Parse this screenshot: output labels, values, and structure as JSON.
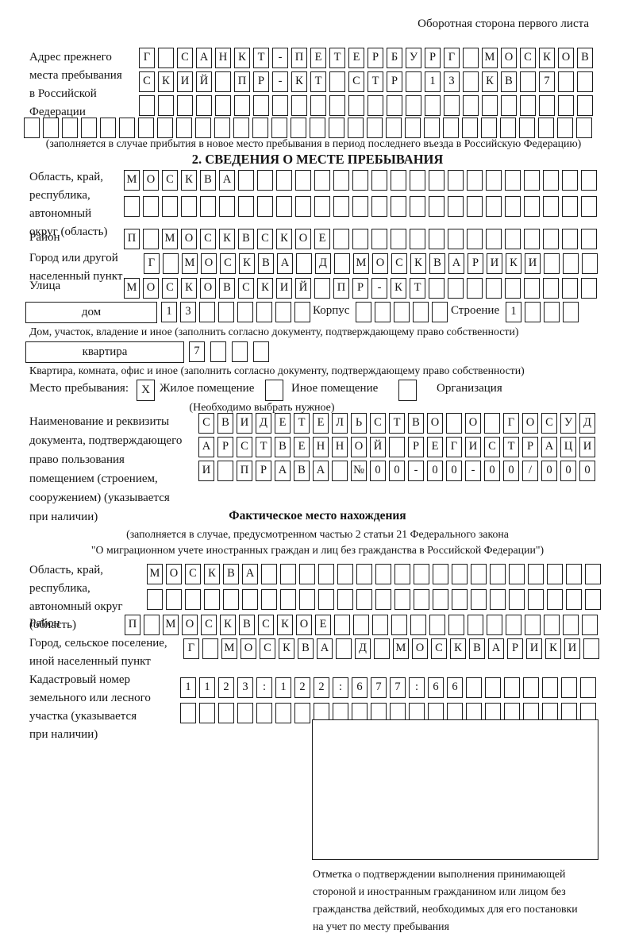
{
  "header_note": "Оборотная сторона первого листа",
  "prev_address": {
    "label_lines": [
      "Адрес прежнего",
      "места пребывания",
      "в Российской",
      "Федерации"
    ],
    "r1": [
      "Г",
      "",
      "С",
      "А",
      "Н",
      "К",
      "Т",
      "-",
      "П",
      "Е",
      "Т",
      "Е",
      "Р",
      "Б",
      "У",
      "Р",
      "Г",
      "",
      "М",
      "О",
      "С",
      "К",
      "О",
      "В"
    ],
    "r2": [
      "С",
      "К",
      "И",
      "Й",
      "",
      "П",
      "Р",
      "-",
      "К",
      "Т",
      "",
      "С",
      "Т",
      "Р",
      "",
      "1",
      "3",
      "",
      "К",
      "В",
      "",
      "7",
      "",
      ""
    ],
    "r3": [
      "",
      "",
      "",
      "",
      "",
      "",
      "",
      "",
      "",
      "",
      "",
      "",
      "",
      "",
      "",
      "",
      "",
      "",
      "",
      "",
      "",
      "",
      "",
      ""
    ],
    "r4": [
      "",
      "",
      "",
      "",
      "",
      "",
      "",
      "",
      "",
      "",
      "",
      "",
      "",
      "",
      "",
      "",
      "",
      "",
      "",
      "",
      "",
      "",
      "",
      "",
      "",
      "",
      "",
      "",
      "",
      ""
    ],
    "caption": "(заполняется в случае прибытия в новое место пребывания в период последнего въезда в Российскую Федерацию)"
  },
  "section2": {
    "title": "2. СВЕДЕНИЯ О МЕСТЕ ПРЕБЫВАНИЯ",
    "region": {
      "label_lines": [
        "Область, край,",
        "республика,",
        "автономный",
        "округ (область)"
      ],
      "r1": [
        "М",
        "О",
        "С",
        "К",
        "В",
        "А",
        "",
        "",
        "",
        "",
        "",
        "",
        "",
        "",
        "",
        "",
        "",
        "",
        "",
        "",
        "",
        "",
        "",
        "",
        ""
      ],
      "r2": [
        "",
        "",
        "",
        "",
        "",
        "",
        "",
        "",
        "",
        "",
        "",
        "",
        "",
        "",
        "",
        "",
        "",
        "",
        "",
        "",
        "",
        "",
        "",
        "",
        ""
      ]
    },
    "district": {
      "label": "Район",
      "r1": [
        "П",
        "",
        "М",
        "О",
        "С",
        "К",
        "В",
        "С",
        "К",
        "О",
        "Е",
        "",
        "",
        "",
        "",
        "",
        "",
        "",
        "",
        "",
        "",
        "",
        "",
        "",
        ""
      ]
    },
    "city": {
      "label_lines": [
        "Город или другой",
        "населенный пункт"
      ],
      "r1": [
        "Г",
        "",
        "М",
        "О",
        "С",
        "К",
        "В",
        "А",
        "",
        "Д",
        "",
        "М",
        "О",
        "С",
        "К",
        "В",
        "А",
        "Р",
        "И",
        "К",
        "И",
        "",
        "",
        ""
      ]
    },
    "street": {
      "label": "Улица",
      "r1": [
        "М",
        "О",
        "С",
        "К",
        "О",
        "В",
        "С",
        "К",
        "И",
        "Й",
        "",
        "П",
        "Р",
        "-",
        "К",
        "Т",
        "",
        "",
        "",
        "",
        "",
        "",
        "",
        "",
        ""
      ]
    },
    "house": {
      "label": "дом",
      "cells": [
        "1",
        "3",
        "",
        "",
        "",
        "",
        "",
        ""
      ],
      "korpus_label": "Корпус",
      "korpus_cells": [
        "",
        "",
        "",
        "",
        ""
      ],
      "stroenie_label": "Строение",
      "stroenie_cells": [
        "1",
        "",
        "",
        ""
      ]
    },
    "house_caption": "Дом, участок, владение и иное (заполнить согласно документу, подтверждающему право собственности)",
    "apartment": {
      "label": "квартира",
      "cells": [
        "7",
        "",
        "",
        ""
      ]
    },
    "apartment_caption": "Квартира, комната, офис и иное (заполнить согласно документу, подтверждающему право собственности)",
    "stay_type": {
      "label": "Место пребывания:",
      "options": [
        {
          "mark": "X",
          "label": "Жилое помещение"
        },
        {
          "mark": "",
          "label": "Иное помещение"
        },
        {
          "mark": "",
          "label": "Организация"
        }
      ],
      "note": "(Необходимо выбрать нужное)"
    },
    "document": {
      "label_lines": [
        "Наименование и реквизиты",
        "документа, подтверждающего",
        "право пользования",
        "помещением (строением,",
        "сооружением) (указывается",
        "при наличии)"
      ],
      "r1": [
        "С",
        "В",
        "И",
        "Д",
        "Е",
        "Т",
        "Е",
        "Л",
        "Ь",
        "С",
        "Т",
        "В",
        "О",
        "",
        "О",
        "",
        "Г",
        "О",
        "С",
        "У",
        "Д"
      ],
      "r2": [
        "А",
        "Р",
        "С",
        "Т",
        "В",
        "Е",
        "Н",
        "Н",
        "О",
        "Й",
        "",
        "Р",
        "Е",
        "Г",
        "И",
        "С",
        "Т",
        "Р",
        "А",
        "Ц",
        "И"
      ],
      "r3": [
        "И",
        "",
        "П",
        "Р",
        "А",
        "В",
        "А",
        "",
        "№",
        "0",
        "0",
        "-",
        "0",
        "0",
        "-",
        "0",
        "0",
        "/",
        "0",
        "0",
        "0"
      ]
    }
  },
  "fact_section": {
    "title": "Фактическое место нахождения",
    "caption_line1": "(заполняется в случае, предусмотренном частью 2 статьи 21 Федерального закона",
    "caption_line2": "\"О миграционном учете иностранных граждан и лиц без гражданства в Российской Федерации\")",
    "region": {
      "label_lines": [
        "Область, край,",
        "республика,",
        "автономный округ",
        "(область)"
      ],
      "r1": [
        "М",
        "О",
        "С",
        "К",
        "В",
        "А",
        "",
        "",
        "",
        "",
        "",
        "",
        "",
        "",
        "",
        "",
        "",
        "",
        "",
        "",
        "",
        "",
        "",
        ""
      ],
      "r2": [
        "",
        "",
        "",
        "",
        "",
        "",
        "",
        "",
        "",
        "",
        "",
        "",
        "",
        "",
        "",
        "",
        "",
        "",
        "",
        "",
        "",
        "",
        "",
        ""
      ]
    },
    "district": {
      "label": "Район",
      "r1": [
        "П",
        "",
        "М",
        "О",
        "С",
        "К",
        "В",
        "С",
        "К",
        "О",
        "Е",
        "",
        "",
        "",
        "",
        "",
        "",
        "",
        "",
        "",
        "",
        "",
        "",
        "",
        ""
      ]
    },
    "city": {
      "label_lines": [
        "Город, сельское поселение,",
        "иной населенный пункт"
      ],
      "r1": [
        "Г",
        "",
        "М",
        "О",
        "С",
        "К",
        "В",
        "А",
        "",
        "Д",
        "",
        "М",
        "О",
        "С",
        "К",
        "В",
        "А",
        "Р",
        "И",
        "К",
        "И",
        ""
      ]
    },
    "cadastral": {
      "label_lines": [
        "Кадастровый номер",
        "земельного или лесного",
        "участка (указывается",
        "при наличии)"
      ],
      "r1": [
        "1",
        "1",
        "2",
        "3",
        ":",
        "1",
        "2",
        "2",
        ":",
        "6",
        "7",
        "7",
        ":",
        "6",
        "6",
        "",
        "",
        "",
        "",
        "",
        "",
        ""
      ],
      "r2": [
        "",
        "",
        "",
        "",
        "",
        "",
        "",
        "",
        "",
        "",
        "",
        "",
        "",
        "",
        "",
        "",
        "",
        "",
        "",
        "",
        "",
        ""
      ]
    },
    "stamp_caption_lines": [
      "Отметка о подтверждении выполнения принимающей",
      "стороной и иностранным гражданином или лицом без",
      "гражданства действий, необходимых для его постановки",
      "на учет по месту пребывания"
    ]
  }
}
